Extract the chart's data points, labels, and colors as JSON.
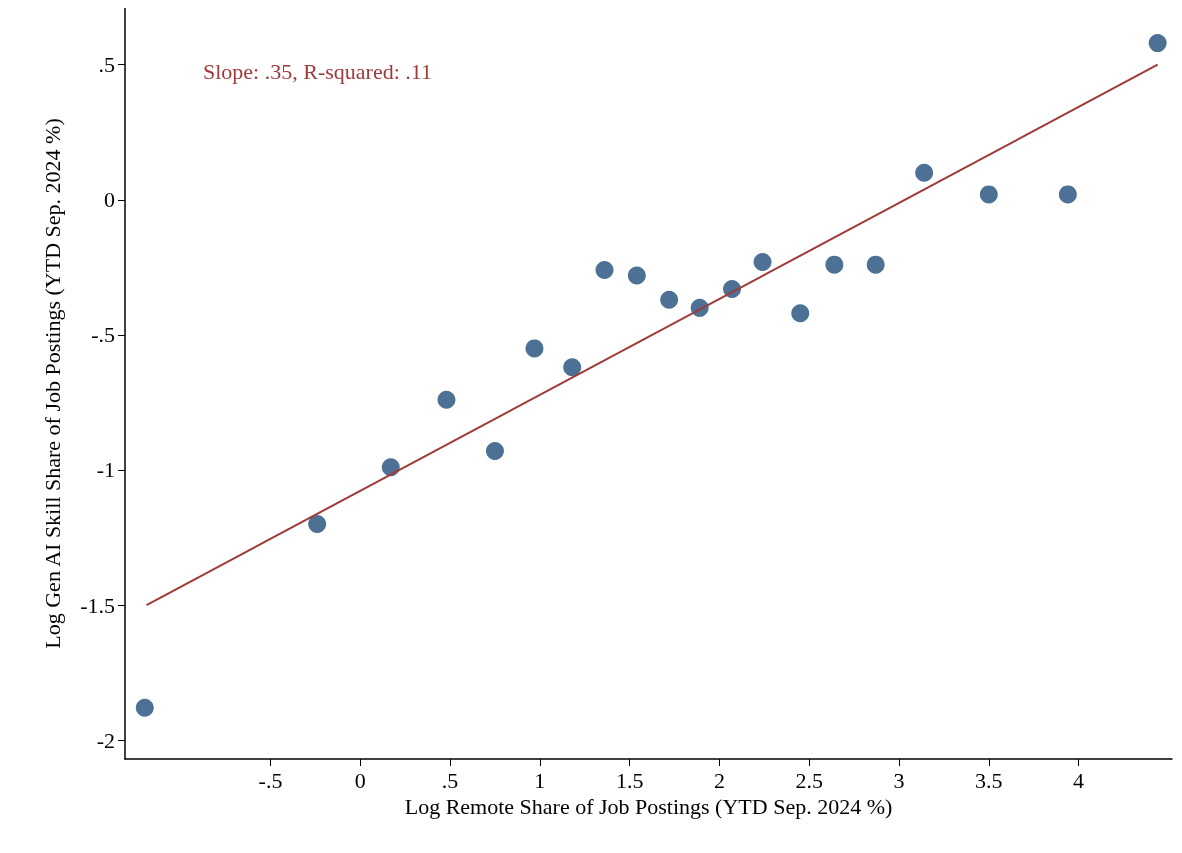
{
  "chart_data": {
    "type": "scatter",
    "xlabel": "Log Remote Share of Job Postings (YTD Sep. 2024 %)",
    "ylabel": "Log Gen AI Skill Share of Job Postings (YTD Sep. 2024 %)",
    "annotations": [
      "Slope: .35, R-squared: .11"
    ],
    "xlim": [
      -1.31,
      4.52
    ],
    "xticks": [
      {
        "value": -0.5,
        "label": "-.5"
      },
      0,
      {
        "value": 0.5,
        "label": ".5"
      },
      1,
      1.5,
      2,
      2.5,
      3,
      3.5,
      4
    ],
    "ylim": [
      -2.07,
      0.71
    ],
    "yticks": [
      -2,
      -1.5,
      -1,
      {
        "value": -0.5,
        "label": "-.5"
      },
      0,
      {
        "value": 0.5,
        "label": ".5"
      }
    ],
    "grid": false,
    "marker": "circle",
    "series": [
      {
        "color": "#1f4e79",
        "x": [
          -1.2,
          -0.24,
          0.17,
          0.48,
          0.75,
          0.97,
          1.18,
          1.36,
          1.54,
          1.72,
          1.89,
          2.07,
          2.24,
          2.45,
          2.64,
          2.87,
          3.14,
          3.5,
          3.94,
          4.44
        ],
        "values": [
          -1.88,
          -1.2,
          -0.99,
          -0.74,
          -0.93,
          -0.55,
          -0.62,
          -0.26,
          -0.28,
          -0.37,
          -0.4,
          -0.33,
          -0.23,
          -0.42,
          -0.24,
          -0.24,
          0.1,
          0.02,
          0.02,
          0.58
        ]
      },
      {
        "type": "line",
        "color": "#a03a3a",
        "x": [
          -1.19,
          4.44
        ],
        "values": [
          -1.5,
          0.5
        ],
        "marker": "none",
        "line_style": "solid"
      }
    ]
  }
}
